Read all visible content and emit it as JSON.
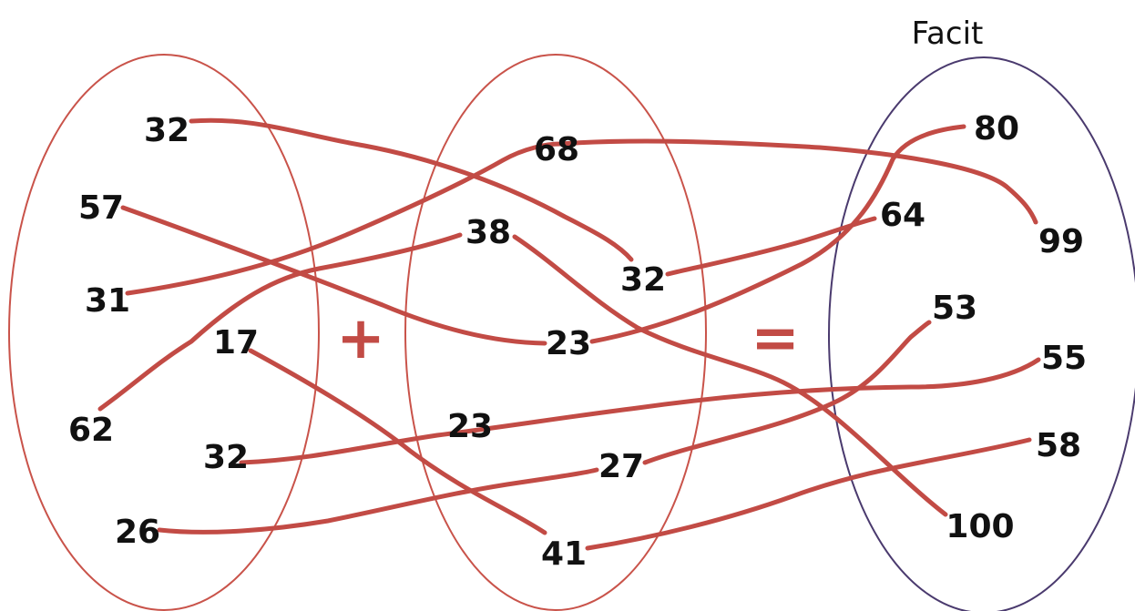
{
  "title": "Facit",
  "colors": {
    "oval_red": "#c9534a",
    "oval_purple": "#4a3a6e",
    "line": "#c24b45",
    "operator": "#c24b45",
    "text": "#111111"
  },
  "operators": {
    "plus": "+",
    "equals": "="
  },
  "left_numbers": [
    "32",
    "57",
    "31",
    "62",
    "17",
    "32",
    "26"
  ],
  "middle_numbers": [
    "68",
    "38",
    "32",
    "23",
    "23",
    "27",
    "41"
  ],
  "right_numbers": [
    "80",
    "64",
    "99",
    "53",
    "55",
    "58",
    "100"
  ],
  "connections": [
    {
      "from": "32",
      "via": "32",
      "to": "64"
    },
    {
      "from": "57",
      "via": "23",
      "to": "80"
    },
    {
      "from": "31",
      "via": "68",
      "to": "99"
    },
    {
      "from": "62",
      "via": "38",
      "to": "100"
    },
    {
      "from": "17",
      "via": "41",
      "to": "58"
    },
    {
      "from": "32",
      "via": "23",
      "to": "55"
    },
    {
      "from": "26",
      "via": "27",
      "to": "53"
    }
  ]
}
